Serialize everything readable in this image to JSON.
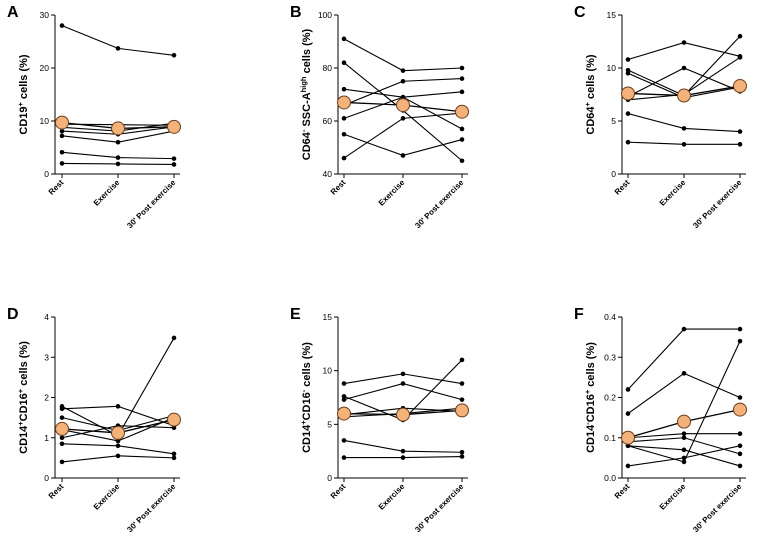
{
  "figure": {
    "background": "#ffffff",
    "line_color": "#000000",
    "mean_marker_fill": "#f4b178",
    "mean_marker_stroke": "#6b3e1e"
  },
  "chart_data": [
    {
      "id": "A",
      "letter": "A",
      "type": "line",
      "categories": [
        "Rest",
        "Exercise",
        "30' Post exercise"
      ],
      "ylabel_parts": [
        {
          "t": "CD19"
        },
        {
          "t": "+",
          "sup": true
        },
        {
          "t": " cells (%)"
        }
      ],
      "ylim": [
        0,
        30
      ],
      "yticks": [
        0,
        10,
        20,
        30
      ],
      "yticklabels": [
        "0",
        "10",
        "20",
        "30"
      ],
      "subjects": [
        [
          28.0,
          23.7,
          22.4
        ],
        [
          9.4,
          9.3,
          9.2
        ],
        [
          8.8,
          8.1,
          9.6
        ],
        [
          8.1,
          7.5,
          8.9
        ],
        [
          7.2,
          6.0,
          8.1
        ],
        [
          4.1,
          3.1,
          2.9
        ],
        [
          2.0,
          1.9,
          1.8
        ]
      ],
      "mean": [
        9.7,
        8.6,
        8.9
      ]
    },
    {
      "id": "B",
      "letter": "B",
      "type": "line",
      "categories": [
        "Rest",
        "Exercise",
        "30' Post exercise"
      ],
      "ylabel_parts": [
        {
          "t": "CD64"
        },
        {
          "t": "-",
          "sup": true
        },
        {
          "t": " SSC-A"
        },
        {
          "t": "high",
          "sup": true
        },
        {
          "t": " cells (%)"
        }
      ],
      "ylim": [
        40,
        100
      ],
      "yticks": [
        40,
        60,
        80,
        100
      ],
      "yticklabels": [
        "40",
        "60",
        "80",
        "100"
      ],
      "subjects": [
        [
          91,
          79,
          80
        ],
        [
          82,
          64,
          45
        ],
        [
          72,
          69,
          57
        ],
        [
          66,
          75,
          76
        ],
        [
          61,
          69,
          71
        ],
        [
          55,
          47,
          53
        ],
        [
          46,
          61,
          63
        ]
      ],
      "mean": [
        67,
        66,
        63.5
      ]
    },
    {
      "id": "C",
      "letter": "C",
      "type": "line",
      "categories": [
        "Rest",
        "Exercise",
        "30' Post exercise"
      ],
      "ylabel_parts": [
        {
          "t": "CD64"
        },
        {
          "t": "+",
          "sup": true
        },
        {
          "t": " cells (%)"
        }
      ],
      "ylim": [
        0,
        15
      ],
      "yticks": [
        0,
        5,
        10,
        15
      ],
      "yticklabels": [
        "0",
        "5",
        "10",
        "15"
      ],
      "subjects": [
        [
          10.8,
          12.4,
          11.1
        ],
        [
          9.8,
          7.4,
          13.0
        ],
        [
          9.5,
          7.2,
          8.2
        ],
        [
          7.3,
          10.0,
          7.8
        ],
        [
          7.0,
          7.5,
          11.0
        ],
        [
          5.7,
          4.3,
          4.0
        ],
        [
          3.0,
          2.8,
          2.8
        ]
      ],
      "mean": [
        7.6,
        7.4,
        8.3
      ]
    },
    {
      "id": "D",
      "letter": "D",
      "type": "line",
      "categories": [
        "Rest",
        "Exercise",
        "30' Post exercise"
      ],
      "ylabel_parts": [
        {
          "t": "CD14"
        },
        {
          "t": "+",
          "sup": true
        },
        {
          "t": "CD16"
        },
        {
          "t": "+",
          "sup": true
        },
        {
          "t": " cells (%)"
        }
      ],
      "ylim": [
        0,
        4
      ],
      "yticks": [
        0,
        1,
        2,
        3,
        4
      ],
      "yticklabels": [
        "0",
        "1",
        "2",
        "3",
        "4"
      ],
      "subjects": [
        [
          1.78,
          1.05,
          3.48
        ],
        [
          1.72,
          1.78,
          1.3
        ],
        [
          1.5,
          1.18,
          1.55
        ],
        [
          1.2,
          0.92,
          1.5
        ],
        [
          1.0,
          1.3,
          1.25
        ],
        [
          0.85,
          0.8,
          0.6
        ],
        [
          0.4,
          0.55,
          0.5
        ]
      ],
      "mean": [
        1.22,
        1.12,
        1.45
      ]
    },
    {
      "id": "E",
      "letter": "E",
      "type": "line",
      "categories": [
        "Rest",
        "Exercise",
        "30' Post exercise"
      ],
      "ylabel_parts": [
        {
          "t": "CD14"
        },
        {
          "t": "+",
          "sup": true
        },
        {
          "t": "CD16"
        },
        {
          "t": "-",
          "sup": true
        },
        {
          "t": " cells (%)"
        }
      ],
      "ylim": [
        0,
        15
      ],
      "yticks": [
        0,
        5,
        10,
        15
      ],
      "yticklabels": [
        "0",
        "5",
        "10",
        "15"
      ],
      "subjects": [
        [
          8.8,
          9.7,
          8.8
        ],
        [
          7.6,
          5.4,
          11.0
        ],
        [
          7.3,
          8.8,
          7.3
        ],
        [
          5.9,
          6.5,
          6.2
        ],
        [
          5.7,
          6.0,
          6.5
        ],
        [
          3.5,
          2.5,
          2.4
        ],
        [
          1.9,
          1.9,
          2.0
        ]
      ],
      "mean": [
        6.0,
        5.9,
        6.3
      ]
    },
    {
      "id": "F",
      "letter": "F",
      "type": "line",
      "categories": [
        "Rest",
        "Exercise",
        "30' Post exercise"
      ],
      "ylabel_parts": [
        {
          "t": "CD14"
        },
        {
          "t": "-",
          "sup": true
        },
        {
          "t": "CD16"
        },
        {
          "t": "+",
          "sup": true
        },
        {
          "t": " cells (%)"
        }
      ],
      "ylim": [
        0,
        0.4
      ],
      "yticks": [
        0,
        0.1,
        0.2,
        0.3,
        0.4
      ],
      "yticklabels": [
        "0.0",
        "0.1",
        "0.2",
        "0.3",
        "0.4"
      ],
      "subjects": [
        [
          0.22,
          0.37,
          0.37
        ],
        [
          0.16,
          0.26,
          0.2
        ],
        [
          0.1,
          0.11,
          0.11
        ],
        [
          0.09,
          0.1,
          0.06
        ],
        [
          0.08,
          0.07,
          0.03
        ],
        [
          0.08,
          0.04,
          0.34
        ],
        [
          0.03,
          0.05,
          0.08
        ]
      ],
      "mean": [
        0.1,
        0.14,
        0.17
      ]
    }
  ]
}
